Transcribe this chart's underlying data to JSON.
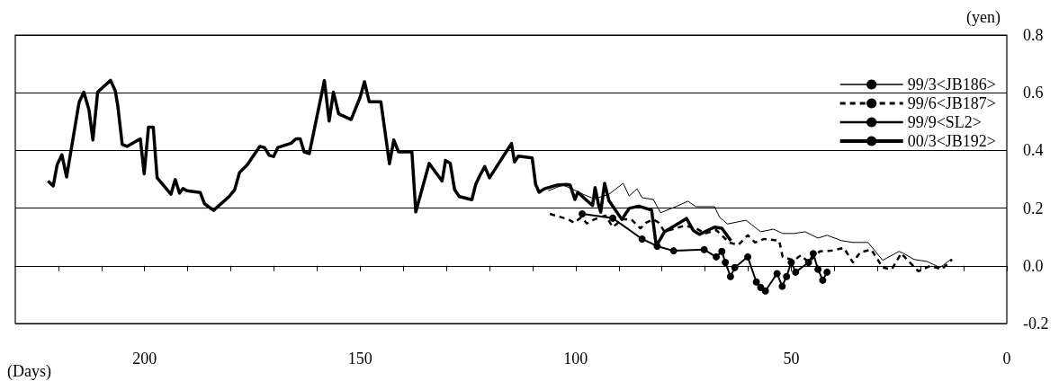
{
  "chart_data": {
    "type": "line",
    "xlabel": "(Days)",
    "ylabel": "(yen)",
    "xlim": [
      230,
      0
    ],
    "xticks": [
      {
        "value": 220,
        "label": null
      },
      {
        "value": 210,
        "label": null
      },
      200,
      {
        "value": 190,
        "label": null
      },
      {
        "value": 180,
        "label": null
      },
      {
        "value": 170,
        "label": null
      },
      {
        "value": 160,
        "label": null
      },
      150,
      {
        "value": 140,
        "label": null
      },
      {
        "value": 130,
        "label": null
      },
      {
        "value": 120,
        "label": null
      },
      {
        "value": 110,
        "label": null
      },
      100,
      {
        "value": 90,
        "label": null
      },
      {
        "value": 80,
        "label": null
      },
      {
        "value": 70,
        "label": null
      },
      {
        "value": 60,
        "label": null
      },
      50,
      {
        "value": 40,
        "label": null
      },
      {
        "value": 30,
        "label": null
      },
      {
        "value": 20,
        "label": null
      },
      {
        "value": 10,
        "label": null
      },
      0
    ],
    "ylim": [
      -0.2,
      0.8
    ],
    "yticks": [
      -0.2,
      {
        "value": 0,
        "label": "0.0"
      },
      0.2,
      0.4,
      0.6,
      0.8
    ],
    "grid": "y",
    "legend": "top right",
    "series": [
      {
        "name": "99/3<JB186>",
        "color": "#000000",
        "line_style": "solid",
        "marker": "none",
        "x": [
          106.4,
          103.0,
          100.9,
          98.3,
          95.7,
          92.3,
          89.0,
          87.6,
          85.8,
          84.6,
          82.0,
          80.3,
          76.8,
          74.0,
          72.1,
          67.8,
          66.6,
          64.8,
          60.5,
          57.1,
          54.1,
          52.0,
          49.4,
          46.8,
          43.8,
          41.7,
          38.3,
          35.7,
          32.2,
          28.8,
          25.0,
          23.7,
          21.5,
          18.5,
          15.5,
          13.0
        ],
        "values": [
          0.26,
          0.28,
          0.267,
          0.248,
          0.232,
          0.248,
          0.286,
          0.242,
          0.267,
          0.236,
          0.23,
          0.184,
          0.205,
          0.224,
          0.205,
          0.205,
          0.168,
          0.145,
          0.158,
          0.118,
          0.127,
          0.112,
          0.112,
          0.118,
          0.096,
          0.106,
          0.087,
          0.081,
          0.081,
          0.019,
          0.05,
          0.041,
          0.022,
          0.015,
          -0.006,
          0.022
        ]
      },
      {
        "name": "99/6<JB187>",
        "color": "#000000",
        "line_style": "dashed",
        "marker": "none",
        "x": [
          106.0,
          101.7,
          100.4,
          98.7,
          97.4,
          95.7,
          93.1,
          91.4,
          89.3,
          87.1,
          85.0,
          83.7,
          82.0,
          80.7,
          79.4,
          76.8,
          74.7,
          72.1,
          70.0,
          67.4,
          64.4,
          62.3,
          60.1,
          58.4,
          56.3,
          52.8,
          52.0,
          49.4,
          47.7,
          46.0,
          43.4,
          40.8,
          37.8,
          35.7,
          34.0,
          31.4,
          28.8,
          26.7,
          24.5,
          20.5,
          17.7,
          15.1,
          12.7
        ],
        "values": [
          0.18,
          0.161,
          0.149,
          0.168,
          0.147,
          0.161,
          0.174,
          0.134,
          0.161,
          0.161,
          0.13,
          0.149,
          0.161,
          0.149,
          0.118,
          0.13,
          0.139,
          0.13,
          0.112,
          0.124,
          0.081,
          0.072,
          0.106,
          0.081,
          0.093,
          0.087,
          0.031,
          0.019,
          0.037,
          0.012,
          0.05,
          0.052,
          0.062,
          0.012,
          0.047,
          0.056,
          -0.006,
          -0.012,
          0.043,
          -0.019,
          0.0,
          -0.012,
          0.022
        ]
      },
      {
        "name": "99/9<SL2>",
        "color": "#000000",
        "line_style": "solid",
        "marker": "circle",
        "x": [
          98.5,
          91.4,
          84.6,
          81.1,
          77.3,
          70.2,
          67.4,
          66.1,
          65.3,
          64.1,
          63.1,
          60.1,
          58.1,
          57.1,
          56.0,
          53.3,
          52.1,
          51.1,
          50.0,
          49.0,
          46.0,
          44.9,
          43.8,
          42.7,
          41.7
        ],
        "values": [
          0.18,
          0.165,
          0.093,
          0.068,
          0.052,
          0.056,
          0.031,
          0.05,
          0.012,
          -0.037,
          -0.006,
          0.031,
          -0.056,
          -0.075,
          -0.087,
          -0.027,
          -0.071,
          -0.037,
          0.012,
          -0.022,
          0.012,
          0.042,
          -0.012,
          -0.05,
          -0.022
        ]
      },
      {
        "name": "00/3<JB192>",
        "color": "#000000",
        "line_style": "solid",
        "marker": "none",
        "x": [
          222.4,
          221.2,
          220.3,
          219.2,
          218.1,
          215.2,
          214.1,
          212.9,
          212.0,
          210.9,
          207.9,
          206.8,
          206.2,
          205.2,
          204.1,
          201.0,
          200.1,
          199.1,
          198.0,
          197.1,
          193.9,
          192.9,
          191.9,
          191.1,
          190.2,
          187.1,
          186.1,
          184.0,
          180.4,
          179.1,
          178.0,
          176.2,
          173.3,
          172.2,
          171.1,
          170.1,
          169.1,
          166.0,
          164.9,
          163.9,
          163.0,
          161.8,
          158.3,
          157.2,
          156.2,
          155.0,
          152.1,
          150.0,
          149.0,
          147.9,
          145.2,
          143.2,
          142.2,
          141.1,
          138.0,
          137.1,
          134.0,
          131.0,
          130.2,
          129.1,
          128.1,
          127.0,
          124.1,
          123.2,
          122.2,
          121.1,
          120.0,
          114.9,
          114.2,
          113.3,
          110.1,
          109.3,
          108.5,
          107.3,
          104.3,
          102.1,
          101.3,
          100.2,
          99.5,
          97.4,
          96.1,
          95.5,
          94.7,
          94.2,
          93.3,
          92.3,
          89.3,
          87.6,
          85.4,
          82.4,
          81.3,
          79.4,
          74.3,
          72.7,
          71.3,
          67.8,
          66.1,
          64.0
        ],
        "values": [
          0.294,
          0.277,
          0.35,
          0.385,
          0.308,
          0.567,
          0.602,
          0.54,
          0.436,
          0.602,
          0.643,
          0.606,
          0.552,
          0.421,
          0.414,
          0.44,
          0.319,
          0.481,
          0.481,
          0.305,
          0.248,
          0.299,
          0.252,
          0.268,
          0.26,
          0.254,
          0.215,
          0.192,
          0.24,
          0.264,
          0.323,
          0.35,
          0.414,
          0.41,
          0.383,
          0.379,
          0.41,
          0.425,
          0.44,
          0.44,
          0.395,
          0.389,
          0.642,
          0.502,
          0.602,
          0.527,
          0.507,
          0.585,
          0.638,
          0.569,
          0.569,
          0.354,
          0.436,
          0.395,
          0.395,
          0.187,
          0.355,
          0.294,
          0.365,
          0.355,
          0.264,
          0.24,
          0.229,
          0.282,
          0.314,
          0.344,
          0.305,
          0.424,
          0.36,
          0.38,
          0.374,
          0.282,
          0.255,
          0.267,
          0.28,
          0.282,
          0.28,
          0.23,
          0.255,
          0.226,
          0.209,
          0.271,
          0.211,
          0.186,
          0.286,
          0.226,
          0.161,
          0.199,
          0.207,
          0.193,
          0.068,
          0.118,
          0.164,
          0.122,
          0.109,
          0.134,
          0.13,
          0.087
        ]
      }
    ]
  }
}
